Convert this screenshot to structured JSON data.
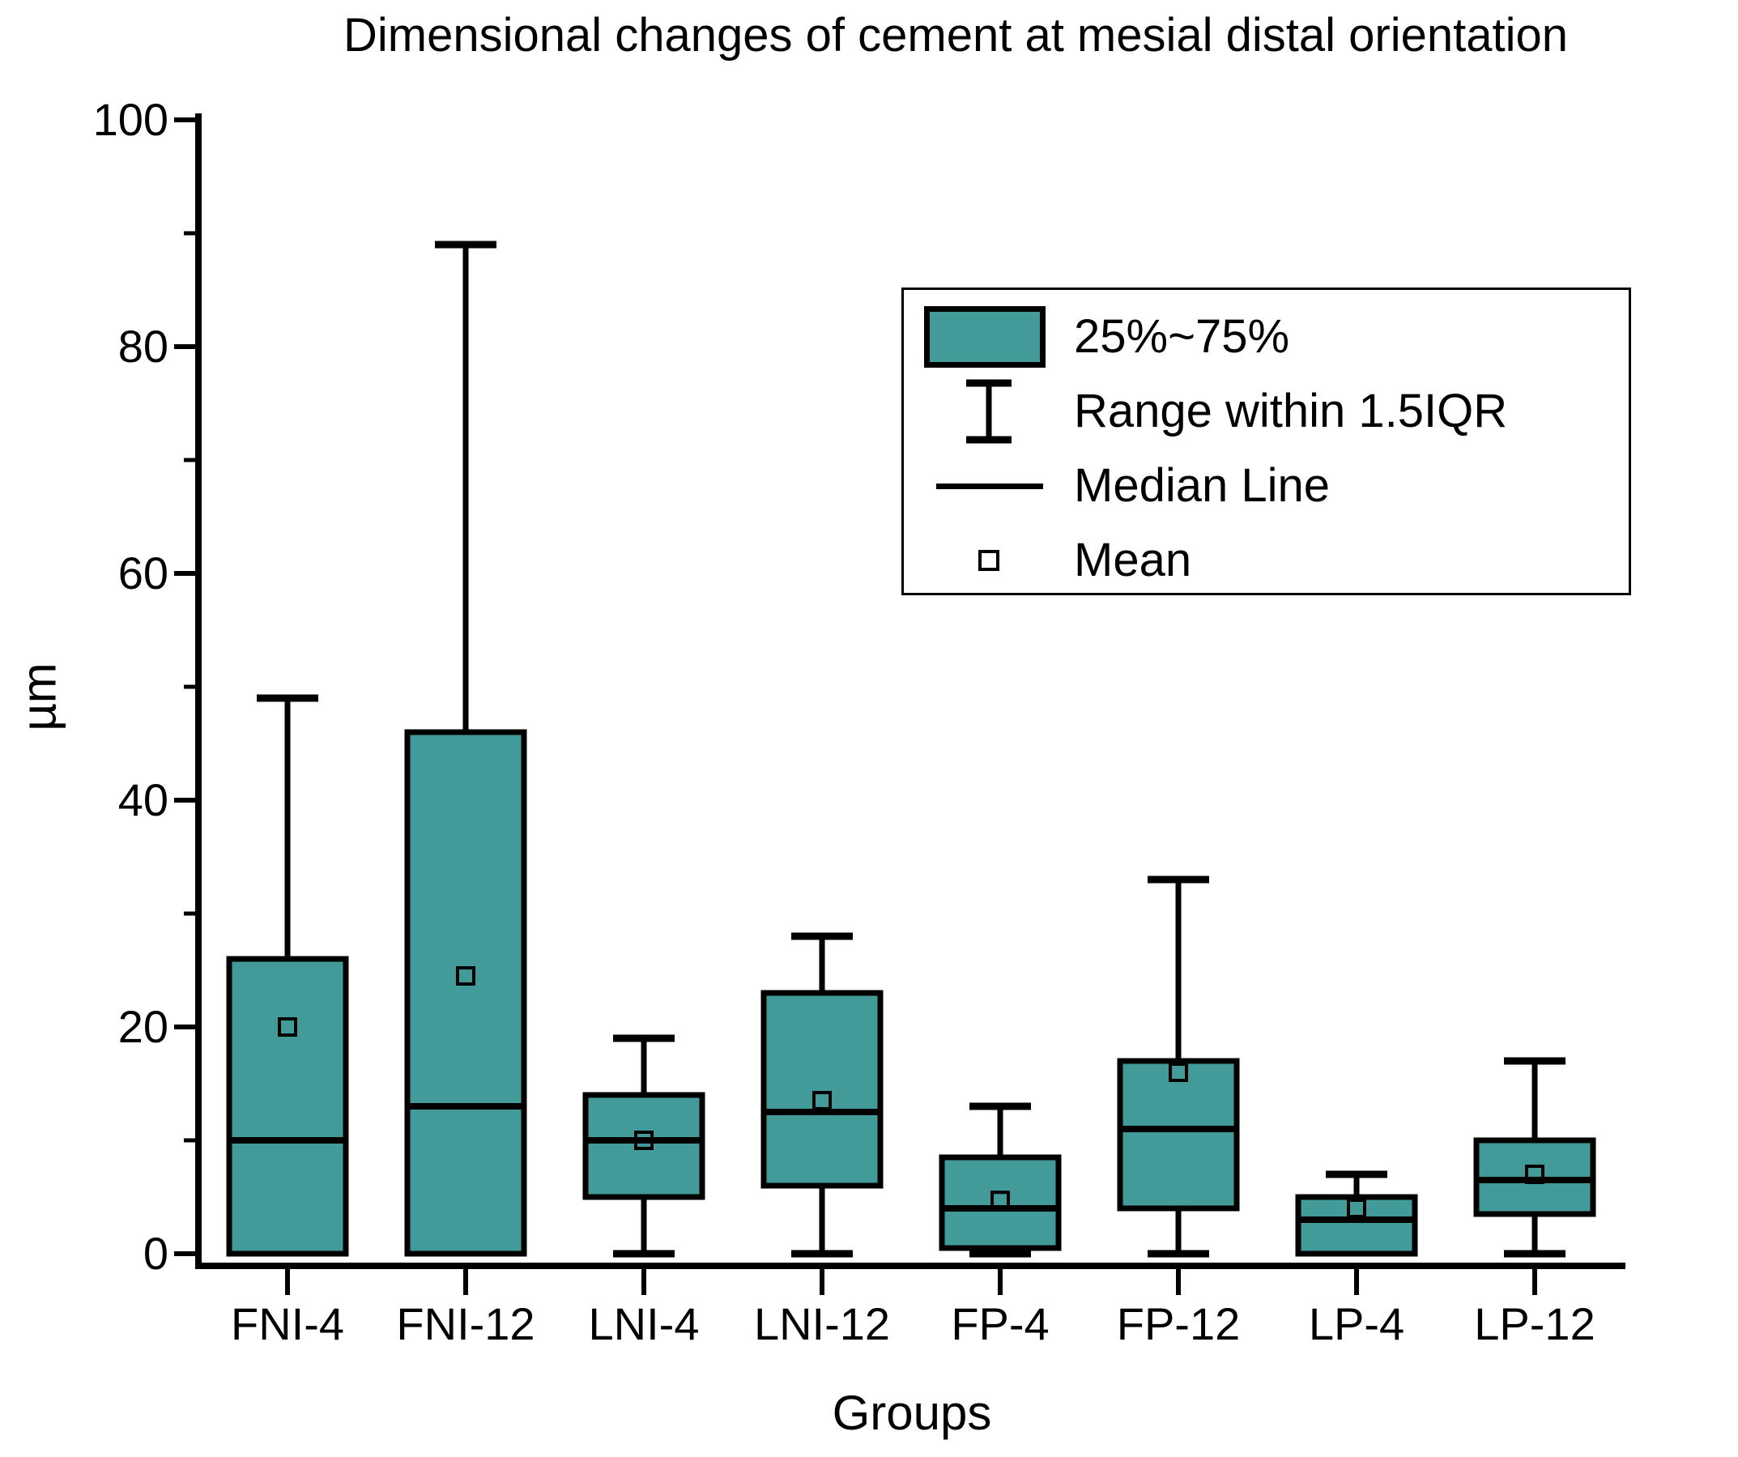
{
  "title": "Dimensional changes of cement at mesial distal orientation",
  "colors": {
    "box_fill": "#429a99",
    "line": "#000000",
    "background": "#ffffff"
  },
  "legend": {
    "items": [
      {
        "label": "25%~75%",
        "glyph": "box-swatch"
      },
      {
        "label": "Range within 1.5IQR",
        "glyph": "whisker"
      },
      {
        "label": "Median Line",
        "glyph": "line"
      },
      {
        "label": "Mean",
        "glyph": "square"
      }
    ],
    "position": "upper-right-inside"
  },
  "chart_data": {
    "type": "boxplot",
    "title": "Dimensional changes of cement at mesial distal orientation",
    "xlabel": "Groups",
    "ylabel": "µm",
    "ylim": [
      0,
      100
    ],
    "yticks_major": [
      0,
      20,
      40,
      60,
      80,
      100
    ],
    "yticks_minor": [
      10,
      30,
      50,
      70,
      90
    ],
    "grid": false,
    "categories": [
      "FNI-4",
      "FNI-12",
      "LNI-4",
      "LNI-12",
      "FP-4",
      "FP-12",
      "LP-4",
      "LP-12"
    ],
    "boxes": [
      {
        "group": "FNI-4",
        "min": 0,
        "q1": 0,
        "median": 10,
        "q3": 26,
        "max": 49,
        "mean": 20
      },
      {
        "group": "FNI-12",
        "min": 0,
        "q1": 0,
        "median": 13,
        "q3": 46,
        "max": 89,
        "mean": 24.5
      },
      {
        "group": "LNI-4",
        "min": 0,
        "q1": 5,
        "median": 10,
        "q3": 14,
        "max": 19,
        "mean": 10
      },
      {
        "group": "LNI-12",
        "min": 0,
        "q1": 6,
        "median": 12.5,
        "q3": 23,
        "max": 28,
        "mean": 13.5
      },
      {
        "group": "FP-4",
        "min": 0,
        "q1": 0.5,
        "median": 4,
        "q3": 8.5,
        "max": 13,
        "mean": 4.7
      },
      {
        "group": "FP-12",
        "min": 0,
        "q1": 4,
        "median": 11,
        "q3": 17,
        "max": 33,
        "mean": 16
      },
      {
        "group": "LP-4",
        "min": 0,
        "q1": 0,
        "median": 3,
        "q3": 5,
        "max": 7,
        "mean": 4
      },
      {
        "group": "LP-12",
        "min": 0,
        "q1": 3.5,
        "median": 6.5,
        "q3": 10,
        "max": 17,
        "mean": 7
      }
    ]
  }
}
